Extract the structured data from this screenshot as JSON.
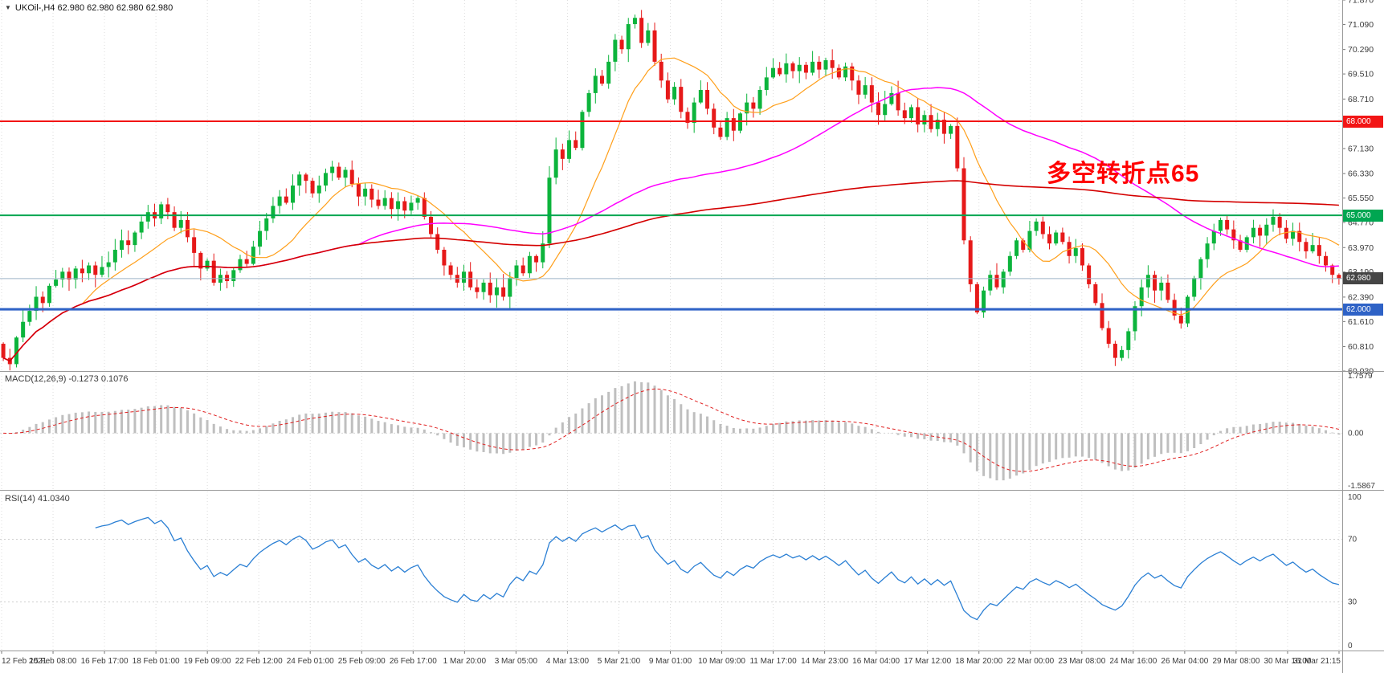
{
  "window": {
    "symbol_ohlc": "UKOil-,H4  62.980 62.980 62.980 62.980",
    "dropdown_icon": "▼"
  },
  "annotation": {
    "text": "多空转折点65",
    "color": "#ff0000"
  },
  "panels": {
    "macd_label": "MACD(12,26,9) -0.1273 0.1076",
    "rsi_label": "RSI(14) 41.0340"
  },
  "colors": {
    "background": "#ffffff",
    "up": "#0cb43c",
    "down": "#e61919",
    "grid": "#dcdcdc",
    "axis_text": "#3c3c3c",
    "separator": "#9a9a9a",
    "macd_hist": "#bfbfbf",
    "macd_signal": "#e02020",
    "rsi_line": "#2a7fd4",
    "current_line": "#9db3c8",
    "current_badge_bg": "#454545",
    "ma_fast": "#ff9f1a",
    "ma_mid": "#ff00ff",
    "ma_slow": "#d40000"
  },
  "chart_data": {
    "type": "candlestick",
    "title": "UKOil- H4",
    "symbol": "UKOil-",
    "timeframe": "H4",
    "current_price": {
      "value": 62.98,
      "label": "62.980"
    },
    "ylim": [
      60.03,
      71.87
    ],
    "y_ticks": [
      71.87,
      71.09,
      70.29,
      69.51,
      68.71,
      67.13,
      66.33,
      65.55,
      64.77,
      63.97,
      63.19,
      62.39,
      61.61,
      60.81,
      60.03
    ],
    "y_tick_labels": [
      "71.870",
      "71.090",
      "70.290",
      "69.510",
      "68.710",
      "67.130",
      "66.330",
      "65.550",
      "64.770",
      "63.970",
      "63.190",
      "62.390",
      "61.610",
      "60.810",
      "60.030"
    ],
    "x_labels": [
      "12 Feb 2021",
      "15 Feb 08:00",
      "16 Feb 17:00",
      "18 Feb 01:00",
      "19 Feb 09:00",
      "22 Feb 12:00",
      "24 Feb 01:00",
      "25 Feb 09:00",
      "26 Feb 17:00",
      "1 Mar 20:00",
      "3 Mar 05:00",
      "4 Mar 13:00",
      "5 Mar 21:00",
      "9 Mar 01:00",
      "10 Mar 09:00",
      "11 Mar 17:00",
      "14 Mar 23:00",
      "16 Mar 04:00",
      "17 Mar 12:00",
      "18 Mar 20:00",
      "22 Mar 00:00",
      "23 Mar 08:00",
      "24 Mar 16:00",
      "26 Mar 04:00",
      "29 Mar 08:00",
      "30 Mar 16:00",
      "31 Mar 21:15"
    ],
    "bars_per_label": 8,
    "first_open": 60.9,
    "closes": [
      60.45,
      60.25,
      61.1,
      61.6,
      61.95,
      62.4,
      62.2,
      62.75,
      62.95,
      63.2,
      62.95,
      63.3,
      63.15,
      63.4,
      63.1,
      63.35,
      63.5,
      63.9,
      64.2,
      64.05,
      64.45,
      64.8,
      65.1,
      64.9,
      65.35,
      65.1,
      64.6,
      64.85,
      64.3,
      63.8,
      63.3,
      63.55,
      62.85,
      63.1,
      62.9,
      63.25,
      63.6,
      63.45,
      64.0,
      64.5,
      64.9,
      65.3,
      65.6,
      65.4,
      65.95,
      66.3,
      66.1,
      65.7,
      65.95,
      66.35,
      66.55,
      66.2,
      66.45,
      66.0,
      65.6,
      65.85,
      65.5,
      65.3,
      65.55,
      65.2,
      65.45,
      65.15,
      65.4,
      65.55,
      64.95,
      64.4,
      63.9,
      63.4,
      63.1,
      62.85,
      63.2,
      62.7,
      62.55,
      62.85,
      62.45,
      62.7,
      62.4,
      63.0,
      63.4,
      63.15,
      63.7,
      63.5,
      64.1,
      66.2,
      67.1,
      66.8,
      67.4,
      67.15,
      68.3,
      68.9,
      69.45,
      69.2,
      69.9,
      70.6,
      70.3,
      71.1,
      71.3,
      70.5,
      70.9,
      69.9,
      69.3,
      68.7,
      69.1,
      68.3,
      67.95,
      68.6,
      69.0,
      68.4,
      67.8,
      67.5,
      68.1,
      67.7,
      68.25,
      68.6,
      68.4,
      69.0,
      69.4,
      69.7,
      69.5,
      69.85,
      69.6,
      69.8,
      69.55,
      69.9,
      69.65,
      69.95,
      69.7,
      69.4,
      69.75,
      69.3,
      68.85,
      69.15,
      68.6,
      68.2,
      68.55,
      68.9,
      68.35,
      68.1,
      68.45,
      67.9,
      68.2,
      67.75,
      68.05,
      67.6,
      67.85,
      66.5,
      64.2,
      62.8,
      61.9,
      62.6,
      63.1,
      62.7,
      63.2,
      63.7,
      64.2,
      63.9,
      64.5,
      64.8,
      64.4,
      64.1,
      64.45,
      64.15,
      63.7,
      63.95,
      63.4,
      62.8,
      62.2,
      61.4,
      60.9,
      60.45,
      60.7,
      61.3,
      62.1,
      62.7,
      63.1,
      62.6,
      62.85,
      62.3,
      61.8,
      61.55,
      62.4,
      63.0,
      63.6,
      64.1,
      64.5,
      64.85,
      64.55,
      64.2,
      63.9,
      64.3,
      64.6,
      64.35,
      64.7,
      64.95,
      64.6,
      64.25,
      64.5,
      64.15,
      63.85,
      64.05,
      63.7,
      63.4,
      63.1,
      62.98
    ],
    "hlines": [
      {
        "value": 68.0,
        "label": "68.000",
        "color": "#f21515",
        "width": 2
      },
      {
        "value": 65.0,
        "label": "65.000",
        "color": "#00a651",
        "width": 2
      },
      {
        "value": 62.0,
        "label": "62.000",
        "color": "#2e62c6",
        "width": 3
      }
    ],
    "overlays": [
      {
        "name": "ma-fast",
        "period": 13
      },
      {
        "name": "ma-mid",
        "period": 55
      },
      {
        "name": "ma-slow",
        "period": 400
      }
    ],
    "macd": {
      "fast": 12,
      "slow": 26,
      "signal": 9,
      "value_main": -0.1273,
      "value_signal": 0.1076,
      "axis_labels": [
        "1.7579",
        "0.00",
        "-1.5867"
      ]
    },
    "rsi": {
      "period": 14,
      "value": 41.034,
      "axis_labels": [
        "100",
        "70",
        "30",
        "0"
      ],
      "levels": [
        70,
        30
      ]
    }
  }
}
